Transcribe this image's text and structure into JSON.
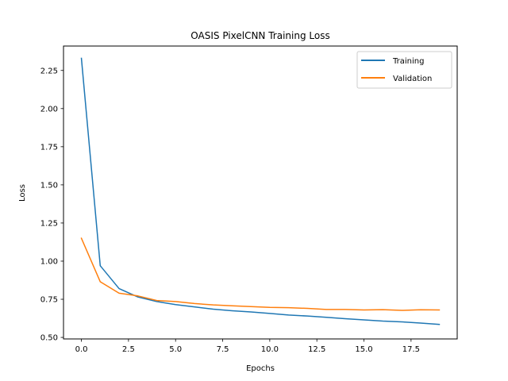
{
  "chart_data": {
    "type": "line",
    "title": "OASIS PixelCNN Training Loss",
    "xlabel": "Epochs",
    "ylabel": "Loss",
    "xlim": [
      -0.95,
      19.95
    ],
    "ylim": [
      0.49,
      2.41
    ],
    "xticks": [
      0,
      2.5,
      5,
      7.5,
      10,
      12.5,
      15,
      17.5
    ],
    "xtick_labels": [
      "0.0",
      "2.5",
      "5.0",
      "7.5",
      "10.0",
      "12.5",
      "15.0",
      "17.5"
    ],
    "yticks": [
      0.5,
      0.75,
      1.0,
      1.25,
      1.5,
      1.75,
      2.0,
      2.25
    ],
    "ytick_labels": [
      "0.50",
      "0.75",
      "1.00",
      "1.25",
      "1.50",
      "1.75",
      "2.00",
      "2.25"
    ],
    "grid": false,
    "legend_position": "top-right",
    "x": [
      0,
      1,
      2,
      3,
      4,
      5,
      6,
      7,
      8,
      9,
      10,
      11,
      12,
      13,
      14,
      15,
      16,
      17,
      18,
      19
    ],
    "series": [
      {
        "name": "Training",
        "color": "#1f77b4",
        "values": [
          2.33,
          0.97,
          0.82,
          0.765,
          0.735,
          0.715,
          0.7,
          0.685,
          0.675,
          0.667,
          0.657,
          0.647,
          0.64,
          0.632,
          0.623,
          0.615,
          0.607,
          0.602,
          0.594,
          0.585
        ]
      },
      {
        "name": "Validation",
        "color": "#ff7f0e",
        "values": [
          1.15,
          0.865,
          0.79,
          0.772,
          0.742,
          0.735,
          0.722,
          0.713,
          0.707,
          0.702,
          0.697,
          0.695,
          0.69,
          0.683,
          0.683,
          0.68,
          0.682,
          0.677,
          0.681,
          0.68
        ]
      }
    ]
  }
}
